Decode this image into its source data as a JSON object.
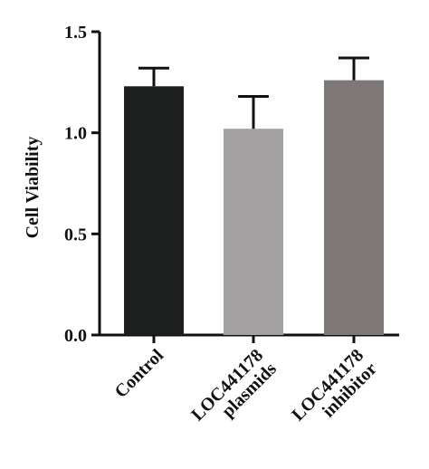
{
  "chart_data": {
    "type": "bar",
    "title": "",
    "xlabel": "",
    "ylabel": "Cell Viability",
    "ylim": [
      0,
      1.5
    ],
    "yticks": [
      "0.0",
      "0.5",
      "1.0",
      "1.5"
    ],
    "ytick_values": [
      0,
      0.5,
      1.0,
      1.5
    ],
    "categories": [
      [
        "Control"
      ],
      [
        "LOC441178",
        "plasmids"
      ],
      [
        "LOC441178",
        "inhibitor"
      ]
    ],
    "values": [
      1.23,
      1.02,
      1.26
    ],
    "errors": [
      0.09,
      0.16,
      0.11
    ],
    "colors": [
      "#1c1f1d",
      "#a4a1a2",
      "#7d7876"
    ],
    "grid": false,
    "legend": "none"
  }
}
